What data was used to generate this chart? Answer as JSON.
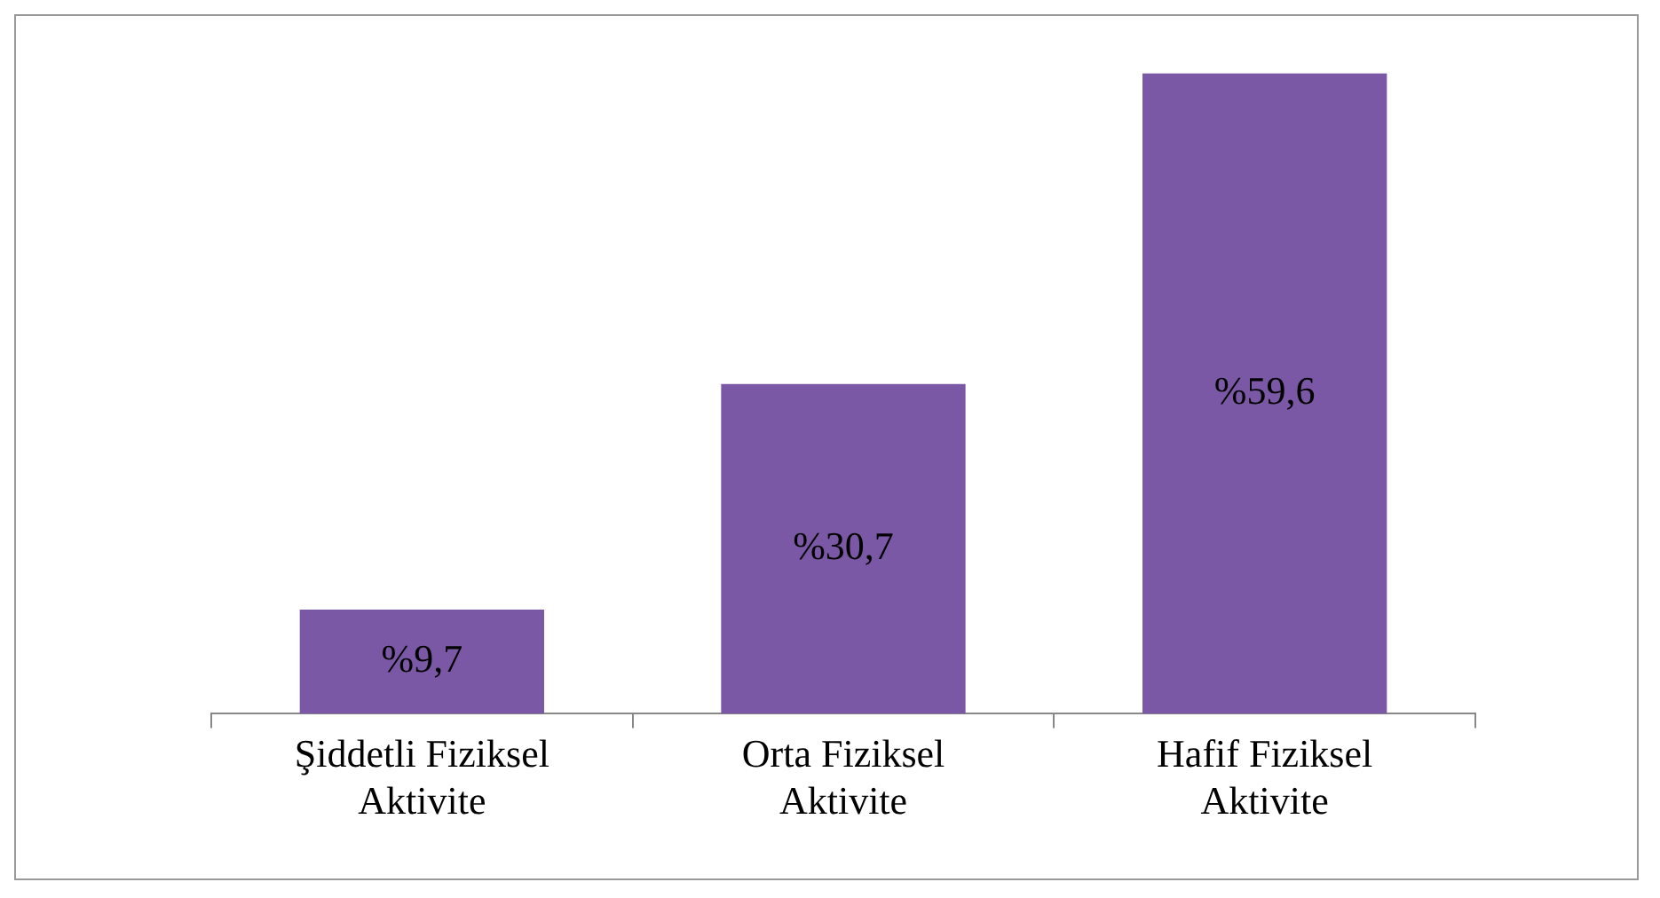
{
  "chart_data": {
    "type": "bar",
    "categories": [
      "Şiddetli Fiziksel Aktivite",
      "Orta Fiziksel Aktivite",
      "Hafif Fiziksel Aktivite"
    ],
    "values": [
      9.7,
      30.7,
      59.6
    ],
    "color": "#7b58a6",
    "value_labels": [
      "%9,7",
      "%30,7",
      "%59,6"
    ],
    "grid": false,
    "legend": false
  }
}
